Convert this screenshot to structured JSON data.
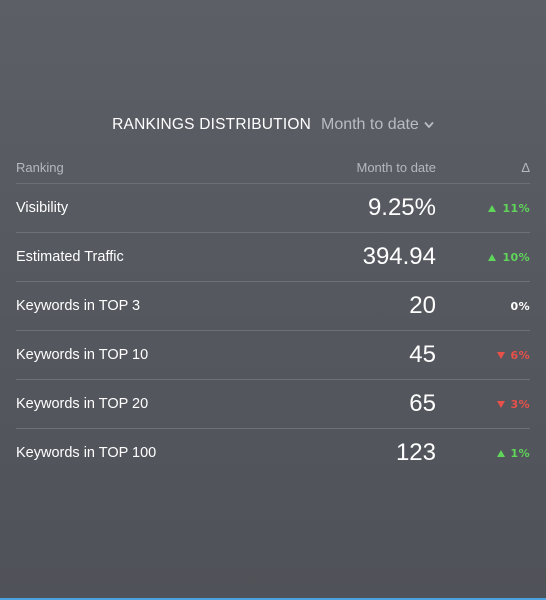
{
  "widget": {
    "title": "RANKINGS DISTRIBUTION",
    "period_selected": "Month to date"
  },
  "table": {
    "headers": {
      "ranking": "Ranking",
      "value": "Month to date",
      "delta": "Δ"
    },
    "rows": [
      {
        "label": "Visibility",
        "value": "9.25%",
        "delta": "11%",
        "trend": "up"
      },
      {
        "label": "Estimated Traffic",
        "value": "394.94",
        "delta": "10%",
        "trend": "up"
      },
      {
        "label": "Keywords in TOP 3",
        "value": "20",
        "delta": "0%",
        "trend": "flat"
      },
      {
        "label": "Keywords in TOP 10",
        "value": "45",
        "delta": "6%",
        "trend": "down"
      },
      {
        "label": "Keywords in TOP 20",
        "value": "65",
        "delta": "3%",
        "trend": "down"
      },
      {
        "label": "Keywords in TOP 100",
        "value": "123",
        "delta": "1%",
        "trend": "up"
      }
    ]
  },
  "colors": {
    "background": "#5c5f66",
    "up": "#5fd55a",
    "down": "#e8514a",
    "muted": "#b9bcc2",
    "divider": "#6d7077"
  },
  "icons": {
    "period_dropdown": "chevron-down-icon",
    "trend_up": "triangle-up-icon",
    "trend_down": "triangle-down-icon"
  }
}
